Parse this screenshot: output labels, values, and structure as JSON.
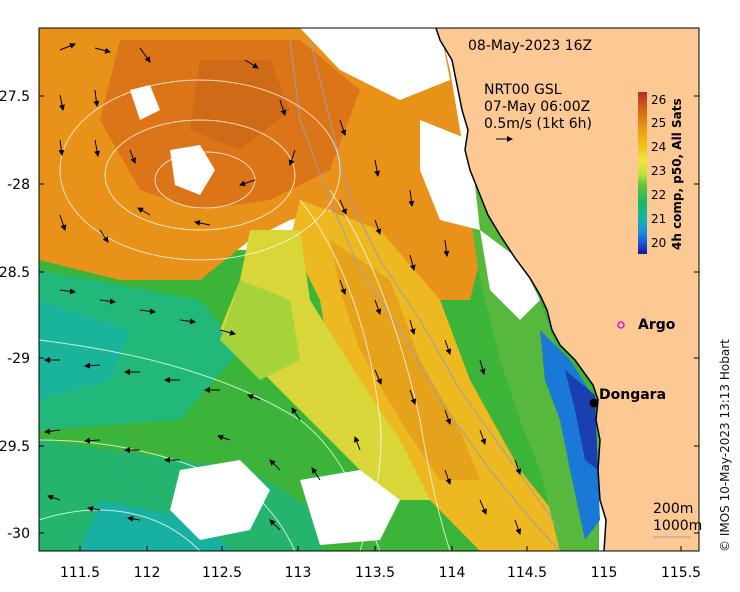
{
  "header": {
    "date": "08-May-2023 16Z"
  },
  "current_key": {
    "source": "NRT00 GSL",
    "time": "07-May 06:00Z",
    "scale": "0.5m/s (1kt 6h)"
  },
  "axes": {
    "lon_ticks": [
      "111.5",
      "112",
      "112.5",
      "113",
      "113.5",
      "114",
      "114.5",
      "115",
      "115.5"
    ],
    "lat_ticks": [
      "-27.5",
      "-28",
      "-28.5",
      "-29",
      "-29.5",
      "-30"
    ]
  },
  "colorbar": {
    "label": "4h comp, p50, All Sats",
    "ticks": [
      "26",
      "25",
      "24",
      "23",
      "22",
      "21",
      "20"
    ],
    "colors": [
      "#b0302a",
      "#d2601a",
      "#e89a10",
      "#f0c018",
      "#f0e63a",
      "#c8e03a",
      "#62c23a",
      "#19b862",
      "#18b4a6",
      "#1890d8",
      "#1a4fd6",
      "#101890"
    ]
  },
  "places": [
    {
      "name": "Argo",
      "type": "float"
    },
    {
      "name": "Dongara",
      "type": "town"
    }
  ],
  "bathymetry": {
    "labels": [
      "200m",
      "1000m"
    ]
  },
  "credit": "© IMOS 10-May-2023 13:13 Hobart"
}
